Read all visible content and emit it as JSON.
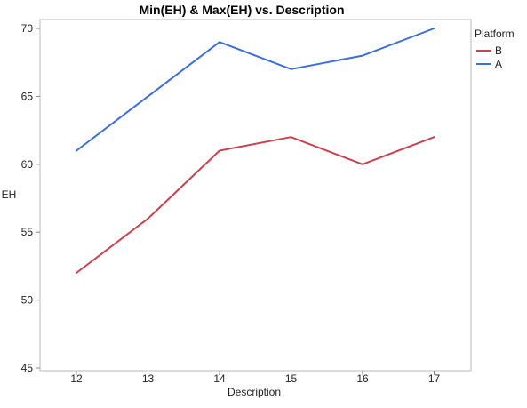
{
  "chart_data": {
    "type": "line",
    "title": "Min(EH) & Max(EH) vs. Description",
    "xlabel": "Description",
    "ylabel": "EH",
    "categories": [
      "12",
      "13",
      "14",
      "15",
      "16",
      "17"
    ],
    "ylim": [
      45,
      70
    ],
    "yticks": [
      45,
      50,
      55,
      60,
      65,
      70
    ],
    "grid": false,
    "legend_title": "Platform",
    "legend_position": "right",
    "series": [
      {
        "name": "B",
        "color": "#c8424f",
        "values": [
          52,
          56,
          61,
          62,
          60,
          62
        ]
      },
      {
        "name": "A",
        "color": "#3e6fd6",
        "values": [
          61,
          65,
          69,
          67,
          68,
          70
        ]
      }
    ]
  }
}
